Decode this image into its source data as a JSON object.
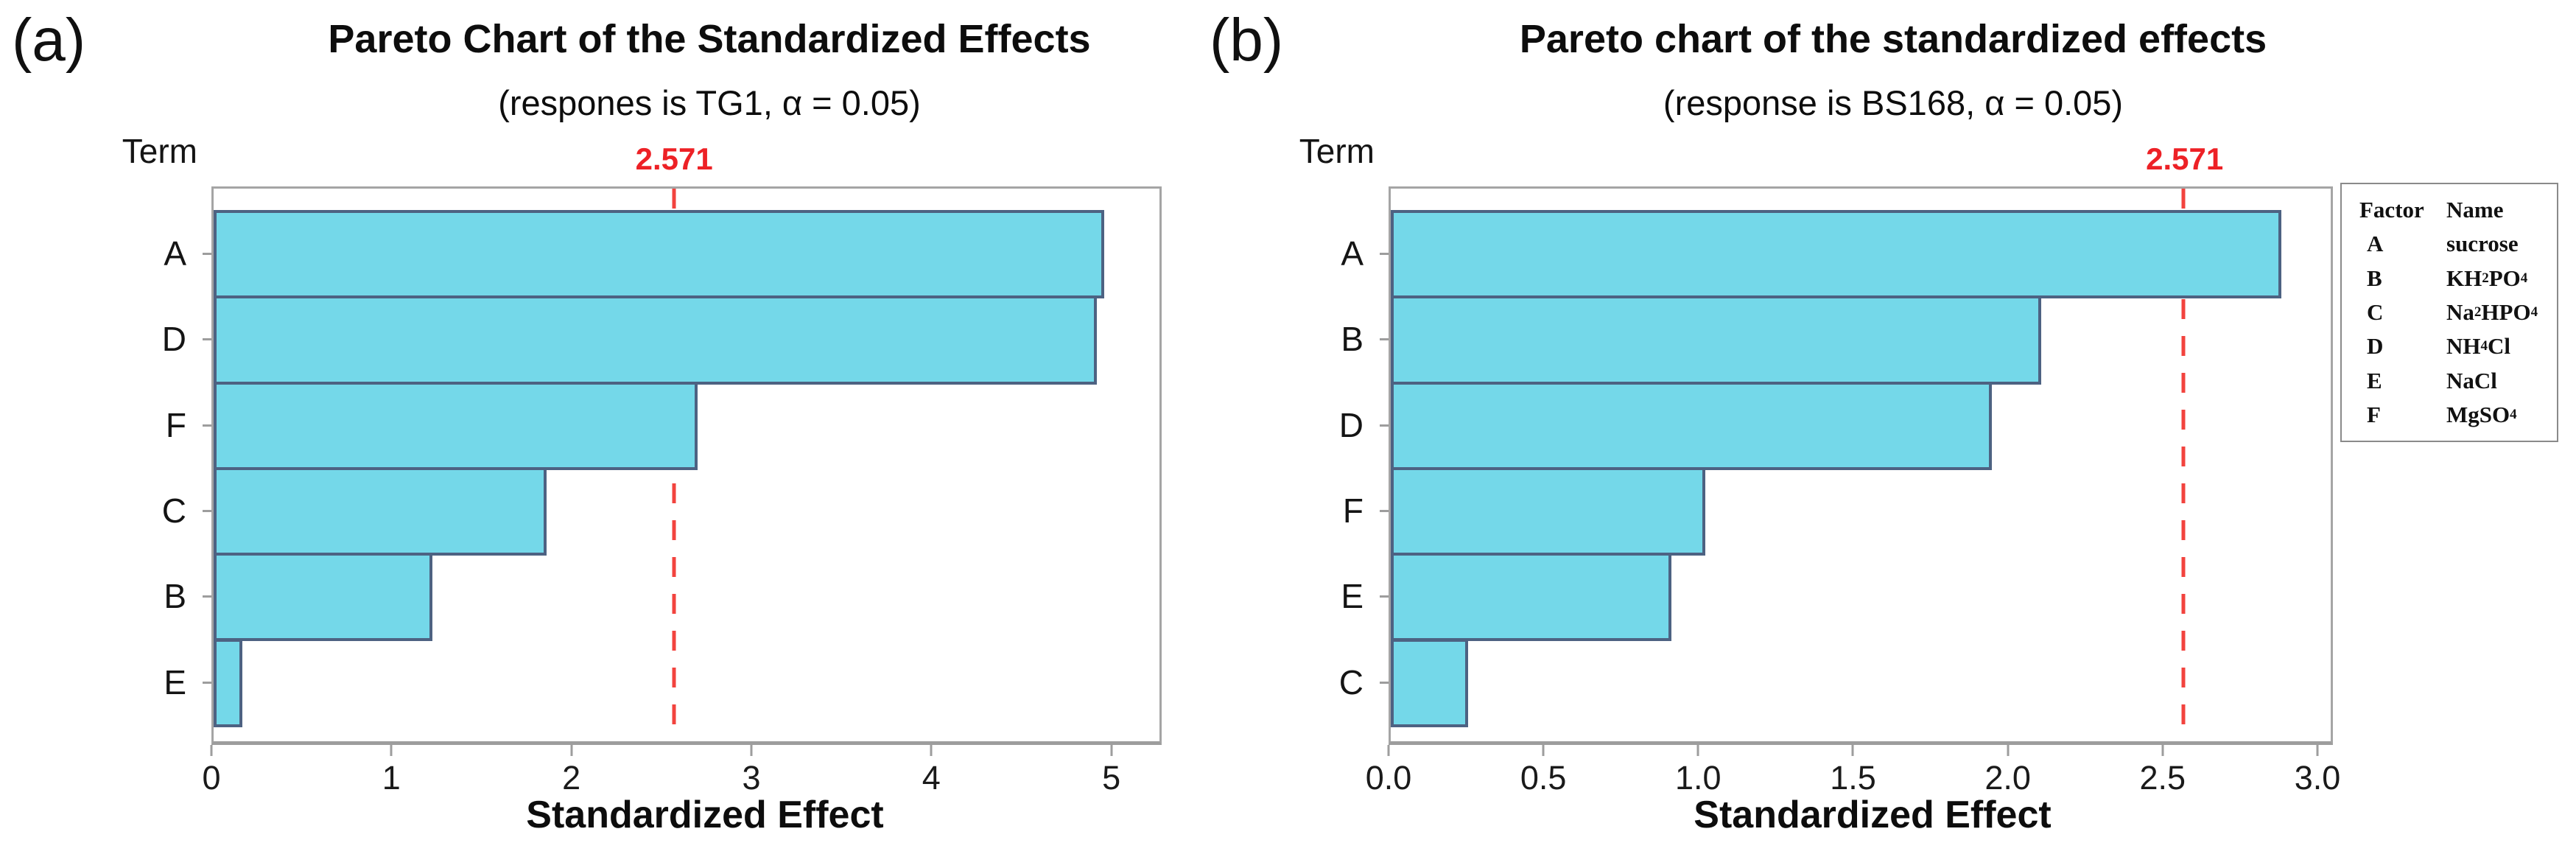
{
  "colors": {
    "bar_fill": "#74d8e9",
    "bar_border": "#4d6282",
    "threshold_text_red": "#ed2126",
    "threshold_line_red": "#f2433e",
    "frame_gray": "#a5a5a5"
  },
  "chart_data": [
    {
      "type": "bar",
      "orientation": "horizontal",
      "panel_label": "(a)",
      "title": "Pareto Chart of the Standardized Effects",
      "subtitle": "(respones is TG1, α = 0.05)",
      "term_label": "Term",
      "categories": [
        "A",
        "D",
        "F",
        "C",
        "B",
        "E"
      ],
      "values": [
        4.97,
        4.93,
        2.7,
        1.86,
        1.22,
        0.16
      ],
      "threshold": 2.571,
      "threshold_label": "2.571",
      "alpha": 0.05,
      "response": "TG1",
      "xlabel": "Standardized Effect",
      "xlim": [
        0,
        5.28
      ],
      "xticks": [
        0,
        1,
        2,
        3,
        4,
        5
      ],
      "xtick_labels": [
        "0",
        "1",
        "2",
        "3",
        "4",
        "5"
      ],
      "grid": false,
      "legend_position": "none"
    },
    {
      "type": "bar",
      "orientation": "horizontal",
      "panel_label": "(b)",
      "title": "Pareto chart of the standardized effects",
      "subtitle": "(response is BS168, α = 0.05)",
      "term_label": "Term",
      "categories": [
        "A",
        "B",
        "D",
        "F",
        "E",
        "C"
      ],
      "values": [
        2.89,
        2.11,
        1.95,
        1.02,
        0.91,
        0.25
      ],
      "threshold": 2.571,
      "threshold_label": "2.571",
      "alpha": 0.05,
      "response": "BS168",
      "xlabel": "Standardized Effect",
      "xlim": [
        0,
        3.05
      ],
      "xticks": [
        0,
        0.5,
        1.0,
        1.5,
        2.0,
        2.5,
        3.0
      ],
      "xtick_labels": [
        "0.0",
        "0.5",
        "1.0",
        "1.5",
        "2.0",
        "2.5",
        "3.0"
      ],
      "grid": false,
      "legend_position": "right"
    }
  ],
  "legend": {
    "headers": [
      "Factor",
      "Name"
    ],
    "rows": [
      {
        "factor": "A",
        "name": "sucrose"
      },
      {
        "factor": "B",
        "name": "KH~2~PO~4~"
      },
      {
        "factor": "C",
        "name": "Na~2~HPO~4~"
      },
      {
        "factor": "D",
        "name": "NH~4~Cl"
      },
      {
        "factor": "E",
        "name": "NaCl"
      },
      {
        "factor": "F",
        "name": "MgSO~4~"
      }
    ]
  }
}
